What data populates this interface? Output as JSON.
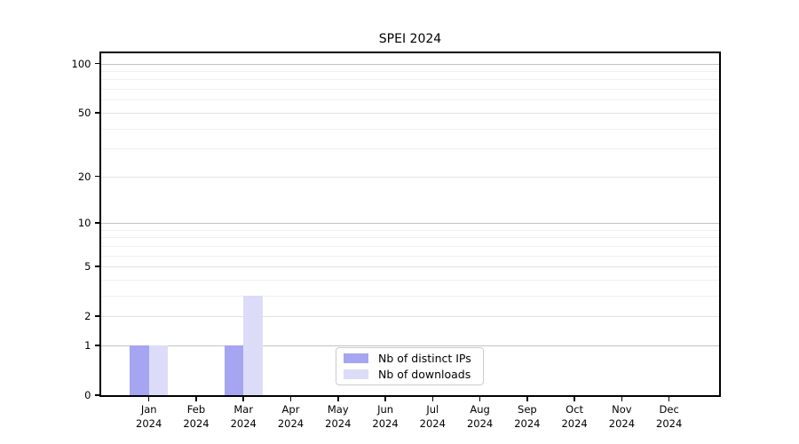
{
  "chart_data": {
    "type": "bar",
    "title": "SPEI 2024",
    "categories": [
      "Jan",
      "Feb",
      "Mar",
      "Apr",
      "May",
      "Jun",
      "Jul",
      "Aug",
      "Sep",
      "Oct",
      "Nov",
      "Dec"
    ],
    "category_year": "2024",
    "series": [
      {
        "name": "Nb of distinct IPs",
        "color": "#a5a5f1",
        "values": [
          1,
          0,
          1,
          0,
          0,
          0,
          0,
          0,
          0,
          0,
          0,
          0
        ]
      },
      {
        "name": "Nb of downloads",
        "color": "#dcdcf8",
        "values": [
          1,
          0,
          3,
          0,
          0,
          0,
          0,
          0,
          0,
          0,
          0,
          0
        ]
      }
    ],
    "y_axis": {
      "scale": "log1p",
      "ticks": [
        0,
        1,
        2,
        5,
        10,
        20,
        50,
        100
      ],
      "decade_ticks": [
        1,
        10,
        100
      ],
      "minor_gridlines": [
        3,
        4,
        6,
        7,
        8,
        9,
        30,
        40,
        60,
        70,
        80,
        90
      ],
      "ylim": [
        0,
        117
      ]
    },
    "grid": true,
    "legend_position": "lower center inside plot"
  },
  "colors": {
    "grid_decade": "#c3c3c3",
    "grid_major": "#e1e1e1",
    "grid_minor": "#efefef",
    "axis": "#000000",
    "legend_border": "#cccccc",
    "background": "#ffffff"
  }
}
